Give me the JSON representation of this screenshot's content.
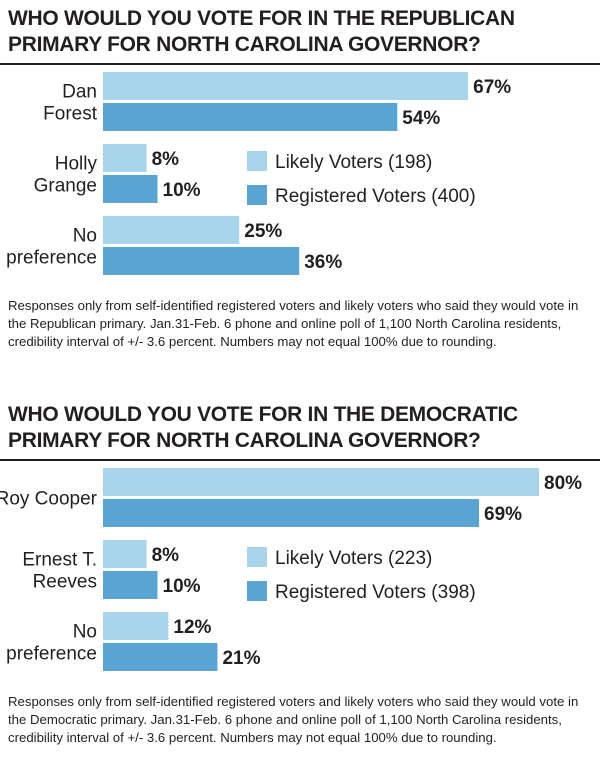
{
  "colors": {
    "likely": "#a9d5ea",
    "registered": "#5aa4d4",
    "text": "#231f20"
  },
  "chart_data": [
    {
      "type": "bar",
      "title": "WHO WOULD YOU VOTE FOR IN THE REPUBLICAN PRIMARY FOR NORTH CAROLINA GOVERNOR?",
      "categories": [
        "Dan Forest",
        "Holly Grange",
        "No preference"
      ],
      "category_lines": [
        [
          "Dan",
          "Forest"
        ],
        [
          "Holly",
          "Grange"
        ],
        [
          "No",
          "preference"
        ]
      ],
      "series": [
        {
          "name": "Likely Voters (198)",
          "values": [
            67,
            8,
            25
          ]
        },
        {
          "name": "Registered Voters (400)",
          "values": [
            54,
            10,
            36
          ]
        }
      ],
      "unit": "%",
      "note": "Responses only from self-identified registered voters and likely voters who said they would vote in the Republican primary. Jan.31-Feb. 6 phone and online poll of 1,100 North Carolina residents, credibility interval of +/- 3.6 percent. Numbers may not equal 100% due to rounding."
    },
    {
      "type": "bar",
      "title": "WHO WOULD YOU VOTE FOR IN THE DEMOCRATIC PRIMARY FOR NORTH CAROLINA GOVERNOR?",
      "categories": [
        "Roy Cooper",
        "Ernest T. Reeves",
        "No preference"
      ],
      "category_lines": [
        [
          "Roy Cooper"
        ],
        [
          "Ernest T.",
          "Reeves"
        ],
        [
          "No",
          "preference"
        ]
      ],
      "series": [
        {
          "name": "Likely Voters (223)",
          "values": [
            80,
            8,
            12
          ]
        },
        {
          "name": "Registered Voters (398)",
          "values": [
            69,
            10,
            21
          ]
        }
      ],
      "unit": "%",
      "note": "Responses only from self-identified registered voters and likely voters who said they would vote in the Democratic primary. Jan.31-Feb. 6 phone and online poll of 1,100 North Carolina residents, credibility interval of +/- 3.6 percent. Numbers may not equal 100% due to rounding."
    }
  ]
}
